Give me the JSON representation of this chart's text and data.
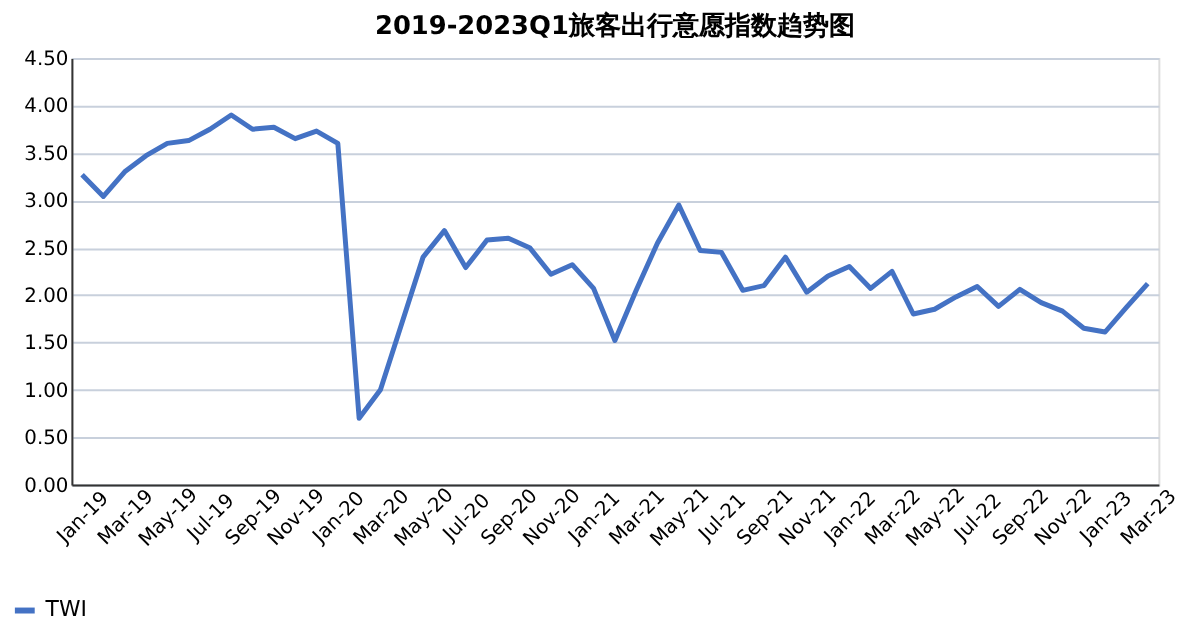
{
  "chart_data": {
    "type": "line",
    "title": "2019-2023Q1旅客出行意愿指数趋势图",
    "categories": [
      "Jan-19",
      null,
      "Mar-19",
      null,
      "May-19",
      null,
      "Jul-19",
      null,
      "Sep-19",
      null,
      "Nov-19",
      null,
      "Jan-20",
      null,
      "Mar-20",
      null,
      "May-20",
      null,
      "Jul-20",
      null,
      "Sep-20",
      null,
      "Nov-20",
      null,
      "Jan-21",
      null,
      "Mar-21",
      null,
      "May-21",
      null,
      "Jul-21",
      null,
      "Sep-21",
      null,
      "Nov-21",
      null,
      "Jan-22",
      null,
      "Mar-22",
      null,
      "May-22",
      null,
      "Jul-22",
      null,
      "Sep-22",
      null,
      "Nov-22",
      null,
      "Jan-23",
      null,
      "Mar-23"
    ],
    "series": [
      {
        "name": "TWI",
        "color": "#4472c4",
        "values": [
          3.27,
          3.04,
          3.3,
          3.47,
          3.6,
          3.63,
          3.75,
          3.9,
          3.75,
          3.77,
          3.65,
          3.73,
          3.6,
          0.7,
          1.0,
          1.7,
          2.4,
          2.68,
          2.29,
          2.58,
          2.6,
          2.5,
          2.22,
          2.32,
          2.07,
          1.52,
          2.05,
          2.55,
          2.95,
          2.47,
          2.45,
          2.05,
          2.1,
          2.4,
          2.03,
          2.2,
          2.3,
          2.07,
          2.25,
          1.8,
          1.85,
          1.98,
          2.09,
          1.88,
          2.06,
          1.92,
          1.83,
          1.65,
          1.61,
          1.87,
          2.12
        ]
      }
    ],
    "ylim": [
      0,
      4.5
    ],
    "yticks": [
      {
        "value": 0,
        "label": "0.00"
      },
      {
        "value": 0.5,
        "label": "0.50"
      },
      {
        "value": 1,
        "label": "1.00"
      },
      {
        "value": 1.5,
        "label": "1.50"
      },
      {
        "value": 2,
        "label": "2.00"
      },
      {
        "value": 2.5,
        "label": "2.50"
      },
      {
        "value": 3,
        "label": "3.00"
      },
      {
        "value": 3.5,
        "label": "3.50"
      },
      {
        "value": 4,
        "label": "4.00"
      },
      {
        "value": 4.5,
        "label": "4.50"
      }
    ],
    "grid": "y",
    "legend": "bottom left",
    "marker": "none",
    "line_style": "solid"
  }
}
